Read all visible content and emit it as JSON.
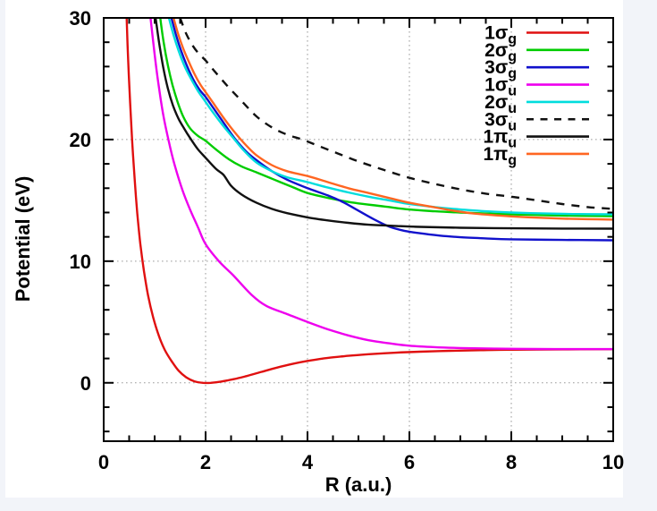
{
  "figure": {
    "outer_background": "#f2f4f9",
    "plot_background": "#ffffff",
    "frame_color": "#000000",
    "grid_color": "#9a9a9a"
  },
  "chart_data": {
    "type": "line",
    "title": "",
    "xlabel": "R (a.u.)",
    "ylabel": "Potential (eV)",
    "xlim": [
      0,
      10
    ],
    "ylim": [
      -4.8,
      30
    ],
    "x_major_ticks": [
      0,
      2,
      4,
      6,
      8,
      10
    ],
    "x_tick_labels": [
      "0",
      "2",
      "4",
      "6",
      "8",
      "10"
    ],
    "x_minor_step": 0.5,
    "y_major_ticks": [
      0,
      10,
      20,
      30
    ],
    "y_tick_labels": [
      "0",
      "10",
      "20",
      "30"
    ],
    "y_minor_step": 2,
    "grid": true,
    "grid_x_lines": [
      2,
      4,
      6,
      8
    ],
    "grid_y_lines": [
      0,
      10,
      20
    ],
    "legend_position": "top-right",
    "series": [
      {
        "id": "1sg",
        "label": "1σ",
        "sub": "g",
        "color": "#e01010",
        "dash": null,
        "points": [
          [
            0.45,
            30
          ],
          [
            0.48,
            26.5
          ],
          [
            0.52,
            23
          ],
          [
            0.56,
            19.8
          ],
          [
            0.61,
            16.6
          ],
          [
            0.66,
            13.9
          ],
          [
            0.72,
            11.4
          ],
          [
            0.79,
            9.2
          ],
          [
            0.87,
            7.2
          ],
          [
            0.97,
            5.4
          ],
          [
            1.08,
            3.9
          ],
          [
            1.2,
            2.7
          ],
          [
            1.33,
            1.8
          ],
          [
            1.47,
            1.0
          ],
          [
            1.62,
            0.45
          ],
          [
            1.78,
            0.12
          ],
          [
            1.95,
            0.0
          ],
          [
            2.1,
            0.0
          ],
          [
            2.3,
            0.1
          ],
          [
            2.55,
            0.3
          ],
          [
            2.8,
            0.55
          ],
          [
            3.1,
            0.9
          ],
          [
            3.4,
            1.25
          ],
          [
            3.7,
            1.55
          ],
          [
            4.0,
            1.8
          ],
          [
            4.4,
            2.05
          ],
          [
            4.8,
            2.22
          ],
          [
            5.2,
            2.35
          ],
          [
            5.7,
            2.47
          ],
          [
            6.2,
            2.56
          ],
          [
            6.8,
            2.63
          ],
          [
            7.4,
            2.68
          ],
          [
            8.0,
            2.72
          ],
          [
            9.0,
            2.75
          ],
          [
            10,
            2.76
          ]
        ]
      },
      {
        "id": "2sg",
        "label": "2σ",
        "sub": "g",
        "color": "#00cc00",
        "dash": null,
        "points": [
          [
            1.11,
            30
          ],
          [
            1.18,
            27.9
          ],
          [
            1.26,
            26.1
          ],
          [
            1.35,
            24.5
          ],
          [
            1.45,
            23.1
          ],
          [
            1.56,
            21.9
          ],
          [
            1.7,
            20.9
          ],
          [
            1.85,
            20.3
          ],
          [
            2.0,
            19.9
          ],
          [
            2.2,
            19.2
          ],
          [
            2.45,
            18.4
          ],
          [
            2.7,
            17.8
          ],
          [
            3.0,
            17.3
          ],
          [
            3.35,
            16.7
          ],
          [
            3.7,
            16.1
          ],
          [
            4.0,
            15.6
          ],
          [
            4.35,
            15.25
          ],
          [
            4.7,
            14.95
          ],
          [
            5.0,
            14.75
          ],
          [
            5.5,
            14.5
          ],
          [
            6.0,
            14.25
          ],
          [
            6.5,
            14.1
          ],
          [
            7.0,
            14.0
          ],
          [
            7.5,
            13.92
          ],
          [
            8.0,
            13.85
          ],
          [
            9.0,
            13.75
          ],
          [
            10,
            13.7
          ]
        ]
      },
      {
        "id": "3sg",
        "label": "3σ",
        "sub": "g",
        "color": "#1111cc",
        "dash": null,
        "points": [
          [
            1.33,
            30
          ],
          [
            1.42,
            28.6
          ],
          [
            1.52,
            27.3
          ],
          [
            1.63,
            26.1
          ],
          [
            1.75,
            25.0
          ],
          [
            1.88,
            24.1
          ],
          [
            2.0,
            23.5
          ],
          [
            2.15,
            22.6
          ],
          [
            2.35,
            21.4
          ],
          [
            2.57,
            20.1
          ],
          [
            2.8,
            19.0
          ],
          [
            3.0,
            18.3
          ],
          [
            3.3,
            17.4
          ],
          [
            3.6,
            16.7
          ],
          [
            4.0,
            16.0
          ],
          [
            4.4,
            15.4
          ],
          [
            4.7,
            14.85
          ],
          [
            5.0,
            14.15
          ],
          [
            5.3,
            13.45
          ],
          [
            5.6,
            12.85
          ],
          [
            5.9,
            12.5
          ],
          [
            6.2,
            12.3
          ],
          [
            6.6,
            12.1
          ],
          [
            7.0,
            11.97
          ],
          [
            7.5,
            11.87
          ],
          [
            8.0,
            11.8
          ],
          [
            9.0,
            11.75
          ],
          [
            10,
            11.72
          ]
        ]
      },
      {
        "id": "1su",
        "label": "1σ",
        "sub": "u",
        "color": "#ee00ee",
        "dash": null,
        "points": [
          [
            0.92,
            30
          ],
          [
            1.0,
            27.0
          ],
          [
            1.08,
            24.4
          ],
          [
            1.17,
            22.0
          ],
          [
            1.28,
            19.8
          ],
          [
            1.4,
            17.8
          ],
          [
            1.55,
            15.8
          ],
          [
            1.7,
            14.2
          ],
          [
            1.85,
            12.8
          ],
          [
            2.0,
            11.4
          ],
          [
            2.26,
            10.0
          ],
          [
            2.55,
            8.8
          ],
          [
            2.91,
            7.2
          ],
          [
            3.2,
            6.3
          ],
          [
            3.6,
            5.65
          ],
          [
            4.0,
            5.0
          ],
          [
            4.4,
            4.4
          ],
          [
            4.8,
            3.9
          ],
          [
            5.2,
            3.5
          ],
          [
            5.6,
            3.25
          ],
          [
            6.0,
            3.05
          ],
          [
            6.5,
            2.93
          ],
          [
            7.0,
            2.86
          ],
          [
            7.7,
            2.81
          ],
          [
            8.5,
            2.78
          ],
          [
            9.2,
            2.77
          ],
          [
            10,
            2.77
          ]
        ]
      },
      {
        "id": "2su",
        "label": "2σ",
        "sub": "u",
        "color": "#00dddd",
        "dash": null,
        "points": [
          [
            1.28,
            30
          ],
          [
            1.37,
            28.6
          ],
          [
            1.47,
            27.3
          ],
          [
            1.58,
            26.1
          ],
          [
            1.7,
            25.1
          ],
          [
            1.85,
            24.0
          ],
          [
            2.0,
            23.1
          ],
          [
            2.15,
            22.2
          ],
          [
            2.35,
            21.1
          ],
          [
            2.53,
            20.2
          ],
          [
            2.75,
            19.1
          ],
          [
            3.0,
            18.1
          ],
          [
            3.3,
            17.4
          ],
          [
            3.6,
            16.9
          ],
          [
            4.0,
            16.5
          ],
          [
            4.4,
            16.05
          ],
          [
            4.8,
            15.65
          ],
          [
            5.2,
            15.3
          ],
          [
            5.6,
            15.0
          ],
          [
            6.0,
            14.7
          ],
          [
            6.5,
            14.45
          ],
          [
            7.0,
            14.25
          ],
          [
            7.5,
            14.1
          ],
          [
            8.0,
            14.0
          ],
          [
            8.7,
            13.92
          ],
          [
            9.3,
            13.87
          ],
          [
            10,
            13.85
          ]
        ]
      },
      {
        "id": "3su",
        "label": "3σ",
        "sub": "u",
        "color": "#111111",
        "dash": "9 8",
        "points": [
          [
            1.5,
            30
          ],
          [
            1.62,
            28.7
          ],
          [
            1.75,
            27.7
          ],
          [
            1.88,
            27.0
          ],
          [
            2.0,
            26.5
          ],
          [
            2.2,
            25.5
          ],
          [
            2.45,
            24.3
          ],
          [
            2.7,
            23.2
          ],
          [
            3.0,
            21.9
          ],
          [
            3.3,
            21.0
          ],
          [
            3.6,
            20.4
          ],
          [
            3.9,
            20.0
          ],
          [
            4.2,
            19.5
          ],
          [
            4.6,
            18.85
          ],
          [
            5.0,
            18.2
          ],
          [
            5.5,
            17.5
          ],
          [
            6.0,
            16.85
          ],
          [
            6.5,
            16.35
          ],
          [
            7.0,
            15.9
          ],
          [
            7.5,
            15.55
          ],
          [
            8.0,
            15.3
          ],
          [
            8.5,
            15.0
          ],
          [
            9.0,
            14.7
          ],
          [
            9.5,
            14.45
          ],
          [
            10,
            14.3
          ]
        ]
      },
      {
        "id": "1pu",
        "label": "1π",
        "sub": "u",
        "color": "#111111",
        "dash": null,
        "points": [
          [
            1.02,
            30
          ],
          [
            1.09,
            27.9
          ],
          [
            1.17,
            25.9
          ],
          [
            1.26,
            24.2
          ],
          [
            1.36,
            22.8
          ],
          [
            1.47,
            21.7
          ],
          [
            1.58,
            20.9
          ],
          [
            1.7,
            20.1
          ],
          [
            1.85,
            19.2
          ],
          [
            2.0,
            18.5
          ],
          [
            2.2,
            17.6
          ],
          [
            2.35,
            17.1
          ],
          [
            2.5,
            16.2
          ],
          [
            2.7,
            15.5
          ],
          [
            3.0,
            14.8
          ],
          [
            3.3,
            14.3
          ],
          [
            3.6,
            13.95
          ],
          [
            4.0,
            13.6
          ],
          [
            4.4,
            13.35
          ],
          [
            4.8,
            13.15
          ],
          [
            5.2,
            13.0
          ],
          [
            5.7,
            12.9
          ],
          [
            6.2,
            12.82
          ],
          [
            7.0,
            12.75
          ],
          [
            8.0,
            12.7
          ],
          [
            9.0,
            12.68
          ],
          [
            10,
            12.67
          ]
        ]
      },
      {
        "id": "1pg",
        "label": "1π",
        "sub": "g",
        "color": "#ff6622",
        "dash": null,
        "points": [
          [
            1.37,
            30
          ],
          [
            1.46,
            28.7
          ],
          [
            1.56,
            27.5
          ],
          [
            1.67,
            26.4
          ],
          [
            1.78,
            25.4
          ],
          [
            1.9,
            24.5
          ],
          [
            2.0,
            23.9
          ],
          [
            2.15,
            23.0
          ],
          [
            2.35,
            21.8
          ],
          [
            2.55,
            20.7
          ],
          [
            2.8,
            19.5
          ],
          [
            3.0,
            18.7
          ],
          [
            3.3,
            17.9
          ],
          [
            3.6,
            17.4
          ],
          [
            4.0,
            17.0
          ],
          [
            4.4,
            16.5
          ],
          [
            4.8,
            16.0
          ],
          [
            5.2,
            15.6
          ],
          [
            5.6,
            15.2
          ],
          [
            6.0,
            14.8
          ],
          [
            6.4,
            14.5
          ],
          [
            6.8,
            14.2
          ],
          [
            7.2,
            13.95
          ],
          [
            7.6,
            13.8
          ],
          [
            8.0,
            13.68
          ],
          [
            8.5,
            13.58
          ],
          [
            9.0,
            13.5
          ],
          [
            9.5,
            13.45
          ],
          [
            10,
            13.42
          ]
        ]
      }
    ]
  }
}
